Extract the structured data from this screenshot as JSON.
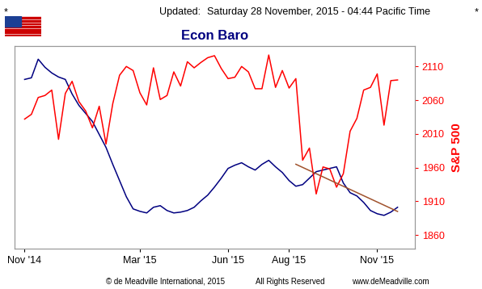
{
  "header": {
    "left_mark": "*",
    "updated_label": "Updated:",
    "timestamp": "Saturday 28 November, 2015 - 04:44 Pacific Time",
    "right_mark": "*"
  },
  "footer": [
    "© de Meadville International, 2015",
    "All Rights Reserved",
    "www.deMeadville.com"
  ],
  "chart_data": {
    "type": "line",
    "title": "Econ Baro",
    "y2_label": "S&P 500",
    "categories": [
      "Nov '14",
      null,
      null,
      null,
      null,
      null,
      null,
      null,
      null,
      null,
      null,
      null,
      null,
      null,
      null,
      null,
      null,
      "Mar '15",
      null,
      null,
      null,
      null,
      null,
      null,
      null,
      null,
      null,
      null,
      null,
      null,
      "Jun '15",
      null,
      null,
      null,
      null,
      null,
      null,
      null,
      null,
      "Aug '15",
      null,
      null,
      null,
      null,
      null,
      null,
      null,
      null,
      null,
      null,
      null,
      null,
      "Nov '15",
      null,
      null,
      null
    ],
    "xlim": [
      -1.5,
      57.5
    ],
    "ylim": [
      0,
      100
    ],
    "yticks": [],
    "y2lim": [
      1840,
      2140
    ],
    "y2ticks": [
      1860,
      1910,
      1960,
      2010,
      2060,
      2110
    ],
    "series": [
      {
        "color": "#000080",
        "axis": "y",
        "values": [
          83.6,
          84.4,
          93.6,
          89.6,
          86.8,
          84.8,
          83.6,
          76.4,
          70.8,
          66.8,
          62.8,
          56.4,
          50,
          41.6,
          33.6,
          25.6,
          19.6,
          18.4,
          17.6,
          20.4,
          21.2,
          18.8,
          17.6,
          18,
          18.8,
          20.4,
          23.6,
          26.4,
          30.4,
          34.8,
          39.6,
          41.2,
          42.4,
          40.4,
          38.8,
          41.6,
          43.6,
          40.4,
          37.6,
          33.6,
          30.8,
          31.6,
          34.8,
          38,
          38.8,
          39.6,
          40.4,
          32.4,
          27.6,
          26,
          22.8,
          18.8,
          17.2,
          16.4,
          18,
          20.4
        ]
      },
      {
        "color": "#ff0000",
        "axis": "y2",
        "values": [
          2032,
          2039,
          2064,
          2067,
          2075,
          2002,
          2070,
          2088,
          2058,
          2044,
          2019,
          2051,
          1995,
          2055,
          2097,
          2110,
          2104,
          2071,
          2053,
          2108,
          2061,
          2067,
          2102,
          2081,
          2117,
          2108,
          2116,
          2123,
          2126,
          2107,
          2092,
          2094,
          2110,
          2102,
          2077,
          2077,
          2127,
          2079,
          2104,
          2078,
          2092,
          1971,
          1989,
          1921,
          1961,
          1958,
          1931,
          1951,
          2014,
          2033,
          2075,
          2079,
          2099,
          2023,
          2089,
          2090
        ]
      },
      {
        "color": "#a0522d",
        "axis": "y2",
        "values": [
          null,
          null,
          null,
          null,
          null,
          null,
          null,
          null,
          null,
          null,
          null,
          null,
          null,
          null,
          null,
          null,
          null,
          null,
          null,
          null,
          null,
          null,
          null,
          null,
          null,
          null,
          null,
          null,
          null,
          null,
          null,
          null,
          null,
          null,
          null,
          null,
          null,
          null,
          null,
          null,
          1965,
          null,
          null,
          null,
          null,
          null,
          null,
          null,
          null,
          null,
          null,
          null,
          null,
          null,
          null,
          1895
        ]
      }
    ]
  }
}
